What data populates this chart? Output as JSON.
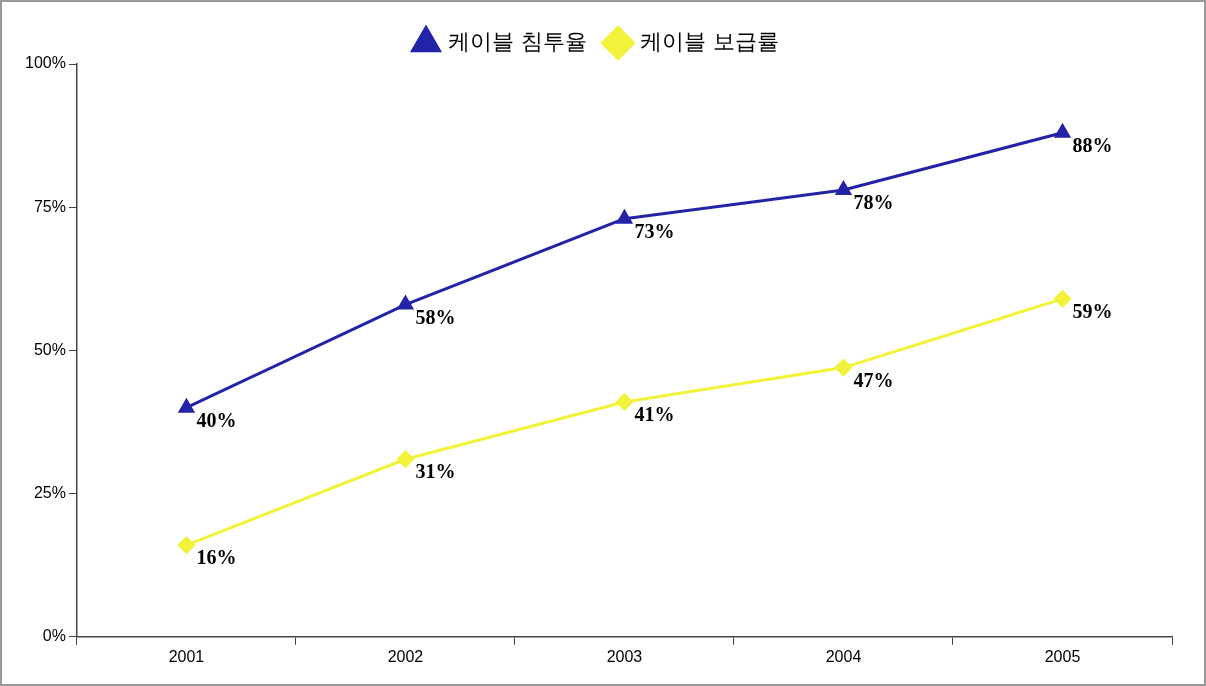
{
  "chart_data": {
    "type": "line",
    "categories": [
      "2001",
      "2002",
      "2003",
      "2004",
      "2005"
    ],
    "series": [
      {
        "name": "케이블 침투율",
        "color": "#2323a8",
        "marker": "triangle",
        "values": [
          40,
          58,
          73,
          78,
          88
        ],
        "value_labels": [
          "40%",
          "58%",
          "73%",
          "78%",
          "88%"
        ]
      },
      {
        "name": "케이블 보급률",
        "color": "#f2f23a",
        "marker": "diamond",
        "values": [
          16,
          31,
          41,
          47,
          59
        ],
        "value_labels": [
          "16%",
          "31%",
          "41%",
          "47%",
          "59%"
        ]
      }
    ],
    "ylim": [
      0,
      100
    ],
    "yticks": [
      {
        "value": 0,
        "label": "0%"
      },
      {
        "value": 25,
        "label": "25%"
      },
      {
        "value": 50,
        "label": "50%"
      },
      {
        "value": 75,
        "label": "75%"
      },
      {
        "value": 100,
        "label": "100%"
      }
    ],
    "grid": false,
    "legend": "top",
    "line_style": "solid"
  }
}
